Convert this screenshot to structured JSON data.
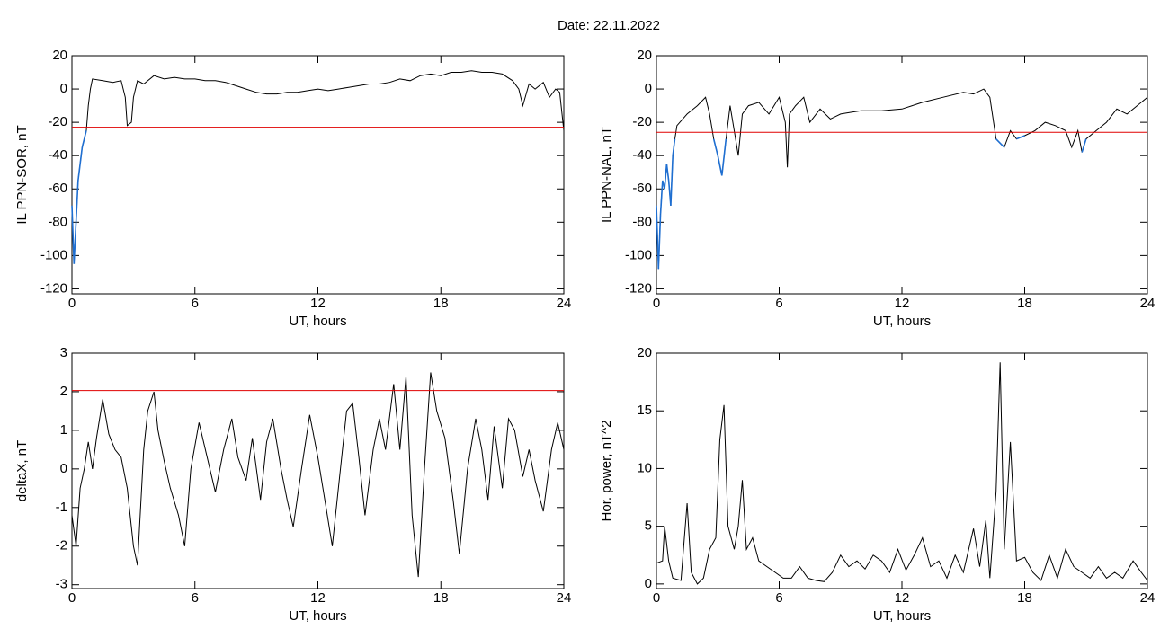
{
  "title": "Date:  22.11.2022",
  "chart_data": [
    {
      "type": "line",
      "ylabel": "IL PPN-SOR, nT",
      "xlabel": "UT, hours",
      "xlim": [
        0,
        24
      ],
      "xticks": [
        0,
        6,
        12,
        18,
        24
      ],
      "ylim": [
        -123,
        20
      ],
      "yticks": [
        -120,
        -100,
        -80,
        -60,
        -40,
        -20,
        0,
        20
      ],
      "threshold": {
        "value": -23,
        "color": "#e00000"
      },
      "below_color": "#1f6fd1",
      "x": [
        0,
        0.1,
        0.2,
        0.3,
        0.4,
        0.5,
        0.6,
        0.7,
        0.8,
        0.9,
        1.0,
        1.5,
        2.0,
        2.4,
        2.6,
        2.7,
        2.9,
        3.0,
        3.2,
        3.5,
        4.0,
        4.5,
        5,
        5.5,
        6,
        6.5,
        7,
        7.5,
        8,
        8.5,
        9,
        9.5,
        10,
        10.5,
        11,
        11.5,
        12,
        12.5,
        13,
        13.5,
        14,
        14.5,
        15,
        15.5,
        16,
        16.5,
        17,
        17.5,
        18,
        18.5,
        19,
        19.5,
        20,
        20.5,
        21,
        21.5,
        21.8,
        22,
        22.3,
        22.6,
        23,
        23.3,
        23.6,
        23.8,
        24
      ],
      "series": [
        {
          "color": "#000000",
          "values": [
            -70,
            -105,
            -80,
            -55,
            -45,
            -35,
            -30,
            -25,
            -10,
            0,
            6,
            5,
            4,
            5,
            -5,
            -22,
            -20,
            -5,
            5,
            3,
            8,
            6,
            7,
            6,
            6,
            5,
            5,
            4,
            2,
            0,
            -2,
            -3,
            -3,
            -2,
            -2,
            -1,
            0,
            -1,
            0,
            1,
            2,
            3,
            3,
            4,
            6,
            5,
            8,
            9,
            8,
            10,
            10,
            11,
            10,
            10,
            9,
            5,
            0,
            -10,
            3,
            0,
            4,
            -5,
            0,
            -2,
            -25
          ]
        }
      ]
    },
    {
      "type": "line",
      "ylabel": "IL PPN-NAL, nT",
      "xlabel": "UT, hours",
      "xlim": [
        0,
        24
      ],
      "xticks": [
        0,
        6,
        12,
        18,
        24
      ],
      "ylim": [
        -123,
        20
      ],
      "yticks": [
        -120,
        -100,
        -80,
        -60,
        -40,
        -20,
        0,
        20
      ],
      "threshold": {
        "value": -26,
        "color": "#e00000"
      },
      "below_color": "#1f6fd1",
      "x": [
        0,
        0.1,
        0.2,
        0.3,
        0.4,
        0.5,
        0.6,
        0.7,
        0.8,
        0.9,
        1.0,
        1.5,
        2,
        2.4,
        2.6,
        2.8,
        3.0,
        3.2,
        3.4,
        3.6,
        3.8,
        4.0,
        4.2,
        4.5,
        5,
        5.5,
        6,
        6.3,
        6.4,
        6.5,
        6.8,
        7.2,
        7.5,
        8,
        8.5,
        9,
        9.5,
        10,
        11,
        12,
        12.5,
        13,
        14,
        15,
        15.5,
        16,
        16.3,
        16.6,
        17,
        17.3,
        17.6,
        18,
        18.5,
        19,
        19.5,
        20,
        20.3,
        20.6,
        20.8,
        21,
        21.5,
        22,
        22.5,
        23,
        23.5,
        24
      ],
      "series": [
        {
          "color": "#000000",
          "values": [
            -70,
            -108,
            -75,
            -55,
            -60,
            -45,
            -55,
            -70,
            -40,
            -30,
            -22,
            -15,
            -10,
            -5,
            -15,
            -30,
            -40,
            -52,
            -30,
            -10,
            -25,
            -40,
            -15,
            -10,
            -8,
            -15,
            -5,
            -20,
            -47,
            -15,
            -10,
            -5,
            -20,
            -12,
            -18,
            -15,
            -14,
            -13,
            -13,
            -12,
            -10,
            -8,
            -5,
            -2,
            -3,
            0,
            -5,
            -30,
            -35,
            -25,
            -30,
            -28,
            -25,
            -20,
            -22,
            -25,
            -35,
            -25,
            -38,
            -30,
            -25,
            -20,
            -12,
            -15,
            -10,
            -5
          ]
        }
      ]
    },
    {
      "type": "line",
      "ylabel": "deltaX, nT",
      "xlabel": "UT, hours",
      "xlim": [
        0,
        24
      ],
      "xticks": [
        0,
        6,
        12,
        18,
        24
      ],
      "ylim": [
        -3.1,
        3
      ],
      "yticks": [
        -3,
        -2,
        -1,
        0,
        1,
        2,
        3
      ],
      "threshold": {
        "value": 2.03,
        "color": "#e00000"
      },
      "x": [
        0,
        0.2,
        0.4,
        0.6,
        0.8,
        1.0,
        1.2,
        1.5,
        1.8,
        2.1,
        2.4,
        2.7,
        2.9,
        3.0,
        3.2,
        3.5,
        3.7,
        4.0,
        4.2,
        4.5,
        4.8,
        5.2,
        5.5,
        5.8,
        6.2,
        6.6,
        7.0,
        7.4,
        7.8,
        8.1,
        8.5,
        8.8,
        9.2,
        9.5,
        9.8,
        10.2,
        10.5,
        10.8,
        11.2,
        11.6,
        12,
        12.4,
        12.7,
        13.0,
        13.4,
        13.7,
        14.0,
        14.3,
        14.7,
        15.0,
        15.3,
        15.7,
        16.0,
        16.3,
        16.6,
        16.9,
        17.2,
        17.5,
        17.8,
        18.2,
        18.6,
        18.9,
        19.3,
        19.7,
        20.0,
        20.3,
        20.6,
        21.0,
        21.3,
        21.6,
        22.0,
        22.3,
        22.6,
        23.0,
        23.4,
        23.7,
        24
      ],
      "series": [
        {
          "color": "#000000",
          "values": [
            -1.2,
            -2.0,
            -0.5,
            0,
            0.7,
            0,
            0.8,
            1.8,
            0.9,
            0.5,
            0.3,
            -0.5,
            -1.5,
            -2.0,
            -2.5,
            0.5,
            1.5,
            2.0,
            1.0,
            0.2,
            -0.5,
            -1.2,
            -2.0,
            0,
            1.2,
            0.3,
            -0.6,
            0.5,
            1.3,
            0.3,
            -0.3,
            0.8,
            -0.8,
            0.7,
            1.3,
            0,
            -0.8,
            -1.5,
            0,
            1.4,
            0.3,
            -1.0,
            -2.0,
            -0.5,
            1.5,
            1.7,
            0.3,
            -1.2,
            0.5,
            1.3,
            0.5,
            2.2,
            0.5,
            2.4,
            -1.2,
            -2.8,
            0,
            2.5,
            1.5,
            0.8,
            -0.8,
            -2.2,
            0,
            1.3,
            0.5,
            -0.8,
            1.1,
            -0.5,
            1.3,
            1.0,
            -0.2,
            0.5,
            -0.3,
            -1.1,
            0.5,
            1.2,
            0.5
          ]
        }
      ]
    },
    {
      "type": "line",
      "ylabel": "Hor. power, nT^2",
      "xlabel": "UT, hours",
      "xlim": [
        0,
        24
      ],
      "xticks": [
        0,
        6,
        12,
        18,
        24
      ],
      "ylim": [
        -0.4,
        20
      ],
      "yticks": [
        0,
        5,
        10,
        15,
        20
      ],
      "x": [
        0,
        0.3,
        0.4,
        0.6,
        0.8,
        1.2,
        1.5,
        1.7,
        2.0,
        2.3,
        2.6,
        2.9,
        3.1,
        3.3,
        3.5,
        3.8,
        4.0,
        4.2,
        4.4,
        4.7,
        5.0,
        5.4,
        5.8,
        6.2,
        6.6,
        7.0,
        7.4,
        7.8,
        8.2,
        8.6,
        9.0,
        9.4,
        9.8,
        10.2,
        10.6,
        11.0,
        11.4,
        11.8,
        12.2,
        12.6,
        13.0,
        13.4,
        13.8,
        14.2,
        14.6,
        15.0,
        15.5,
        15.8,
        16.1,
        16.3,
        16.6,
        16.8,
        17.0,
        17.3,
        17.6,
        18.0,
        18.4,
        18.8,
        19.2,
        19.6,
        20.0,
        20.4,
        20.8,
        21.2,
        21.6,
        22.0,
        22.4,
        22.8,
        23.3,
        23.7,
        24
      ],
      "series": [
        {
          "color": "#000000",
          "values": [
            1.8,
            2,
            5,
            2,
            0.5,
            0.3,
            7,
            1,
            0,
            0.5,
            3,
            4,
            12.5,
            15.5,
            5,
            3,
            5,
            9,
            3,
            4,
            2,
            1.5,
            1,
            0.5,
            0.5,
            1.5,
            0.5,
            0.3,
            0.2,
            1.0,
            2.5,
            1.5,
            2,
            1.3,
            2.5,
            2,
            1,
            3,
            1.2,
            2.5,
            4,
            1.5,
            2,
            0.5,
            2.5,
            1,
            4.8,
            1.5,
            5.5,
            0.5,
            8,
            19.2,
            3,
            12.3,
            2,
            2.3,
            1,
            0.3,
            2.5,
            0.5,
            3,
            1.5,
            1,
            0.5,
            1.5,
            0.5,
            1,
            0.5,
            2,
            1,
            0.3
          ]
        }
      ]
    }
  ]
}
